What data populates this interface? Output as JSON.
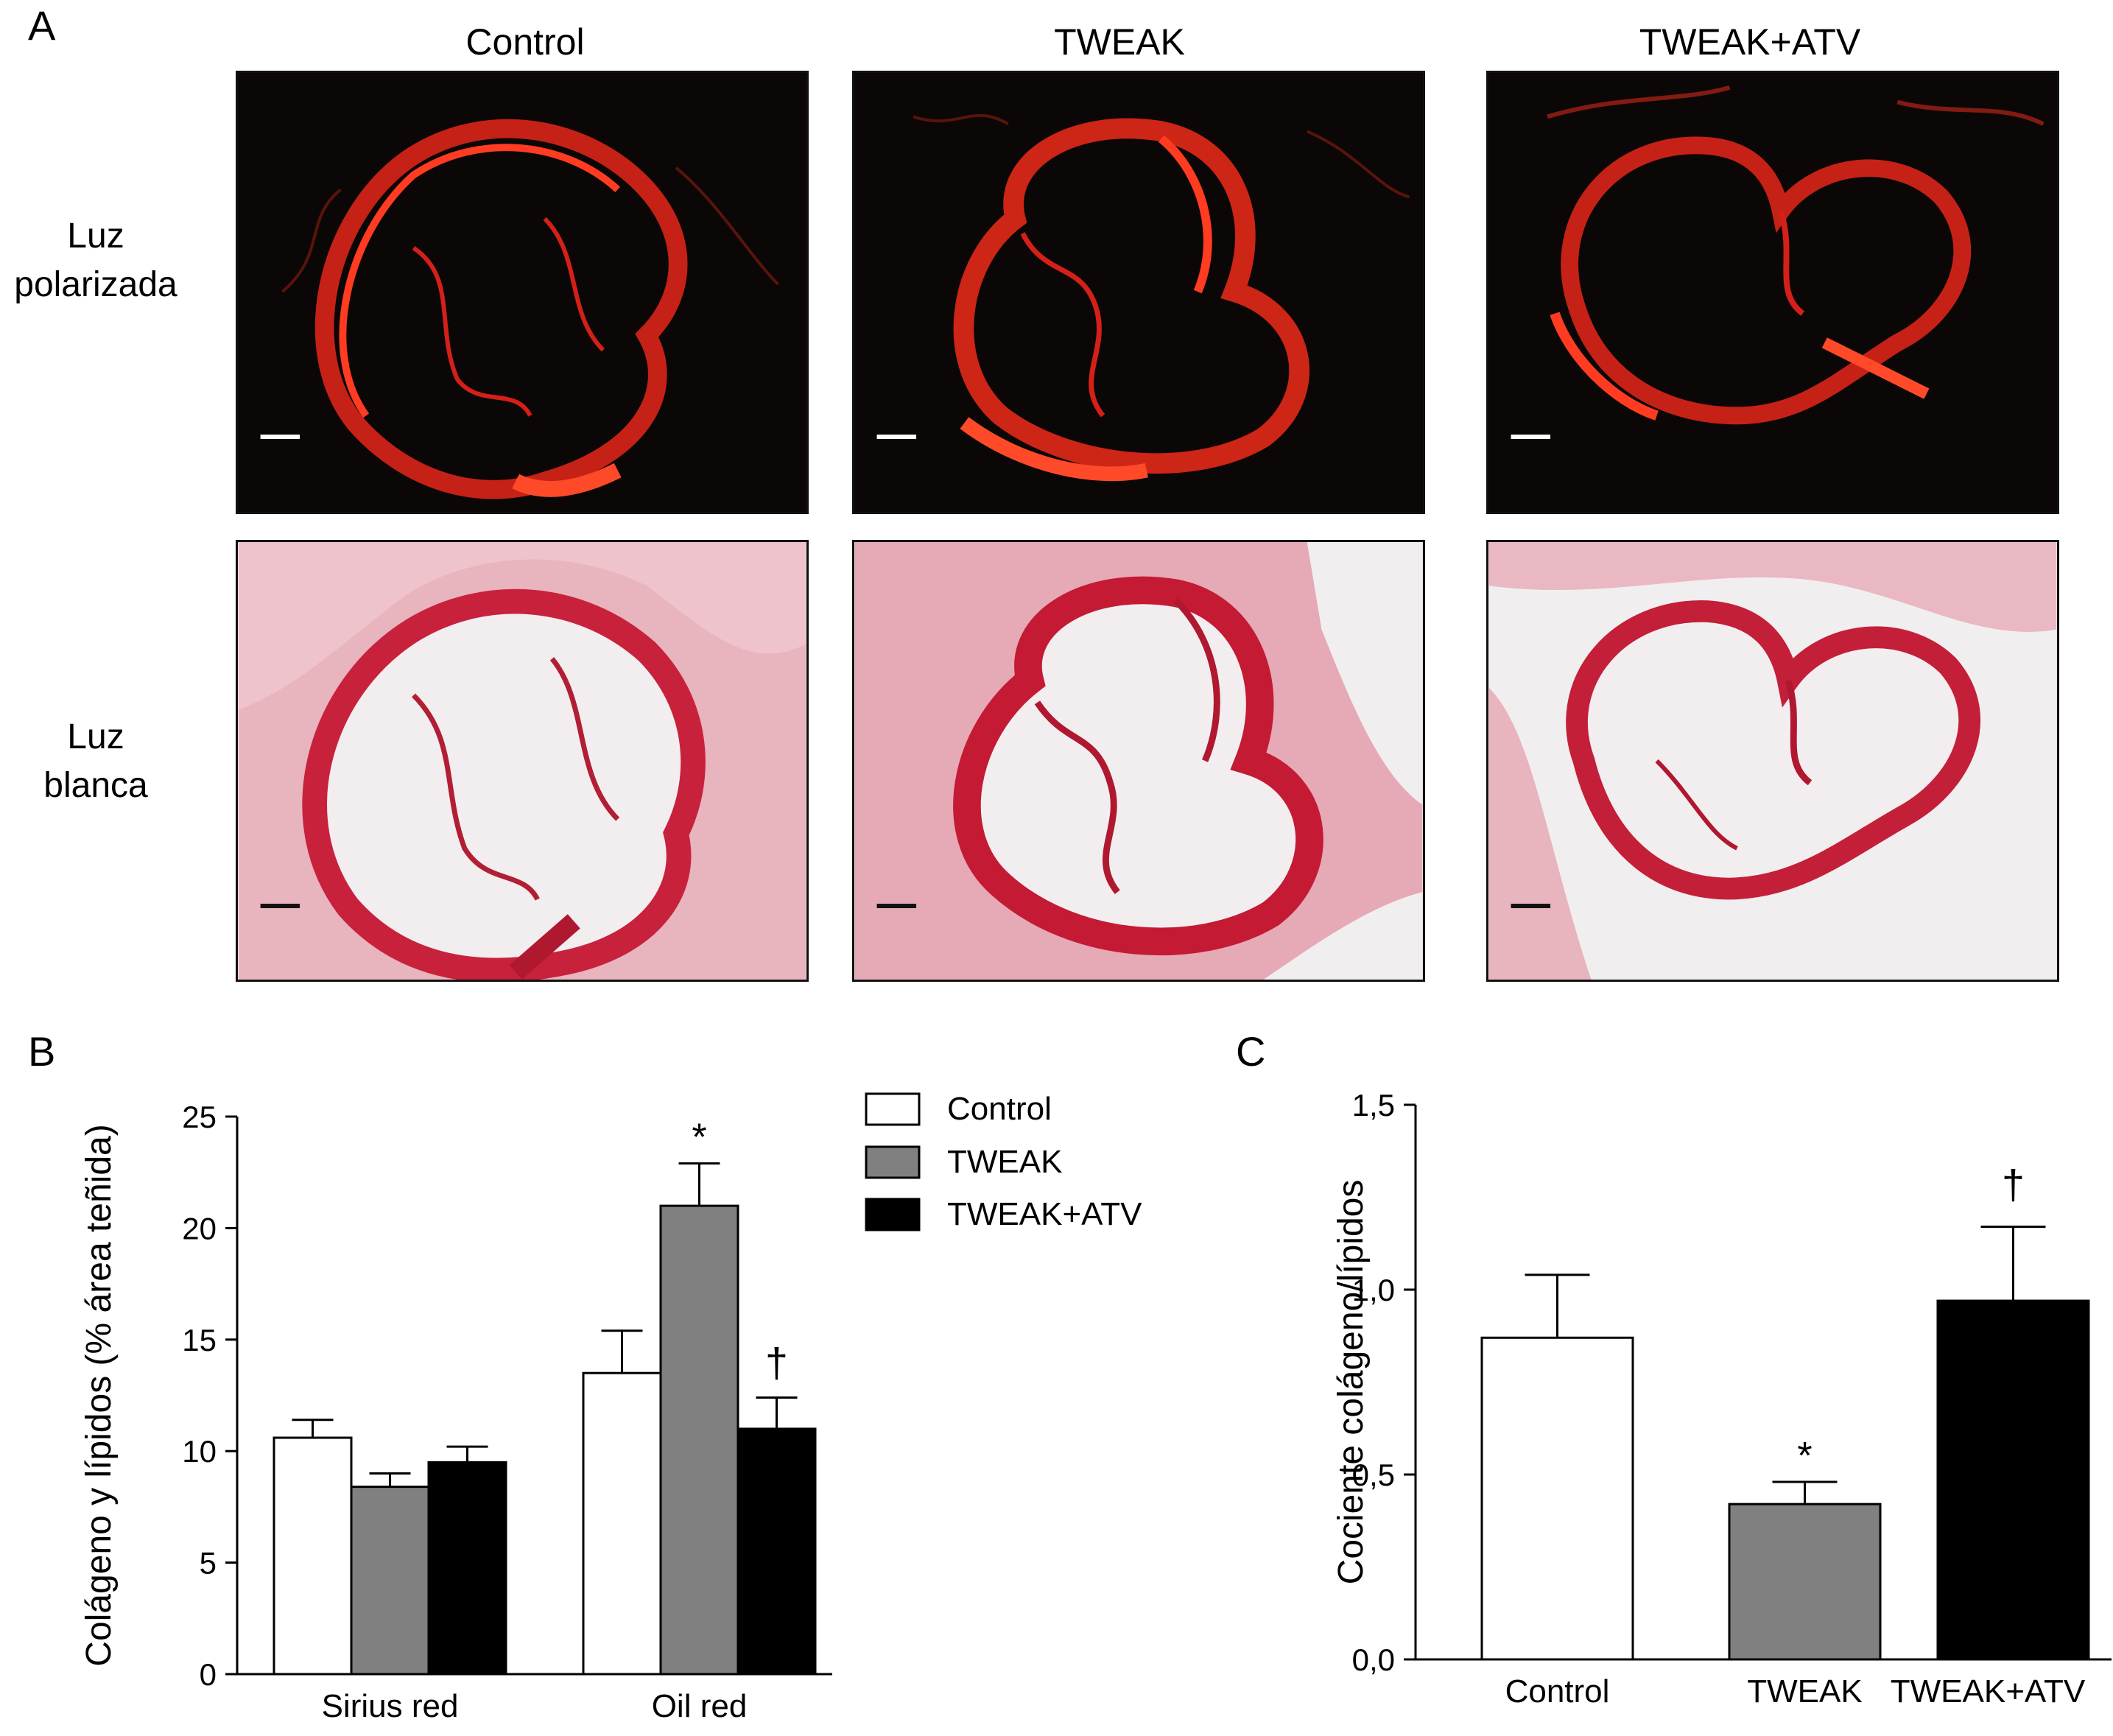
{
  "panels": {
    "a": "A",
    "b": "B",
    "c": "C"
  },
  "column_titles": [
    "Control",
    "TWEAK",
    "TWEAK+ATV"
  ],
  "row_labels": {
    "polarized": [
      "Luz",
      "polarizada"
    ],
    "white": [
      "Luz",
      "blanca"
    ]
  },
  "chart_data": [
    {
      "type": "bar",
      "panel": "B",
      "ylabel": "Colágeno y lípidos (% área teñida)",
      "xlabel": "",
      "ylim": [
        0,
        25
      ],
      "yticks": [
        0,
        5,
        10,
        15,
        20,
        25
      ],
      "categories": [
        "Sirius red",
        "Oil red"
      ],
      "legend": {
        "placement": "top-right",
        "entries": [
          "Control",
          "TWEAK",
          "TWEAK+ATV"
        ]
      },
      "series": [
        {
          "name": "Control",
          "color": "#ffffff",
          "values": [
            10.6,
            13.5
          ],
          "errors": [
            0.8,
            1.9
          ]
        },
        {
          "name": "TWEAK",
          "color": "#808080",
          "values": [
            8.4,
            21.0
          ],
          "errors": [
            0.6,
            1.9
          ]
        },
        {
          "name": "TWEAK+ATV",
          "color": "#000000",
          "values": [
            9.5,
            11.0
          ],
          "errors": [
            0.7,
            1.4
          ]
        }
      ],
      "annotations": [
        {
          "category": "Oil red",
          "series": "TWEAK",
          "text": "*"
        },
        {
          "category": "Oil red",
          "series": "TWEAK+ATV",
          "text": "†"
        }
      ]
    },
    {
      "type": "bar",
      "panel": "C",
      "ylabel": "Cociente colágeno/lípidos",
      "xlabel": "",
      "ylim": [
        0,
        1.5
      ],
      "yticks": [
        "0,0",
        "0,5",
        "1,0",
        "1,5"
      ],
      "categories": [
        "Control",
        "TWEAK",
        "TWEAK+ATV"
      ],
      "values": [
        0.87,
        0.42,
        0.97
      ],
      "errors": [
        0.17,
        0.06,
        0.2
      ],
      "colors": [
        "#ffffff",
        "#808080",
        "#000000"
      ],
      "annotations": [
        {
          "category": "TWEAK",
          "text": "*"
        },
        {
          "category": "TWEAK+ATV",
          "text": "†"
        }
      ]
    }
  ]
}
